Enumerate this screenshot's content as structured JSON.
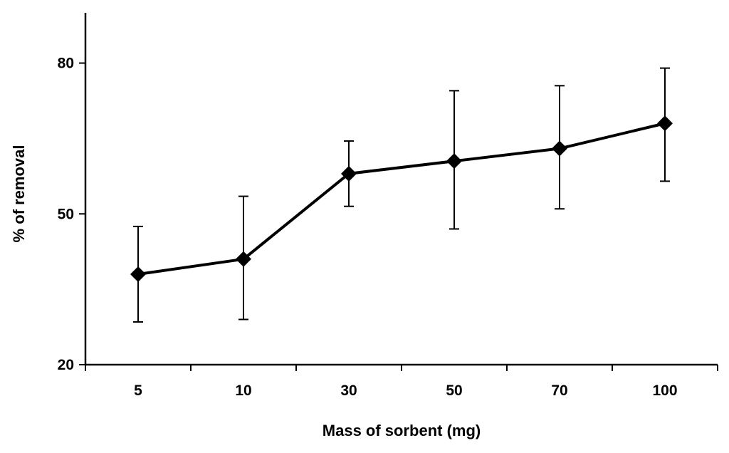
{
  "chart_data": {
    "type": "line",
    "title": "",
    "xlabel": "Mass of sorbent (mg)",
    "ylabel": "% of removal",
    "categories": [
      "5",
      "10",
      "30",
      "50",
      "70",
      "100"
    ],
    "ylim": [
      20,
      90
    ],
    "yticks": [
      20,
      50,
      80
    ],
    "grid": false,
    "series": [
      {
        "name": "% of removal",
        "marker": "diamond",
        "values": [
          38,
          41,
          58,
          60.5,
          63,
          68
        ],
        "error_plus": [
          9.5,
          12.5,
          6.5,
          14,
          12.5,
          11
        ],
        "error_minus": [
          9.5,
          12,
          6.5,
          13.5,
          12,
          11.5
        ]
      }
    ]
  }
}
